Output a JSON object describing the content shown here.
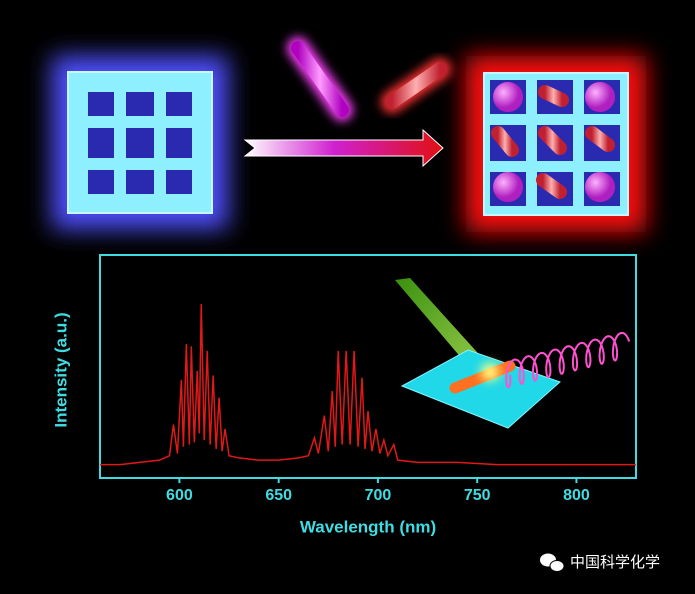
{
  "chart_data": {
    "type": "line",
    "x_label": "Wavelength (nm)",
    "y_label": "Intensity (a.u.)",
    "x": [
      560,
      570,
      580,
      590,
      595,
      597,
      599,
      601,
      602,
      603.5,
      605,
      606,
      607.5,
      609,
      610,
      611,
      612.5,
      614,
      615.5,
      617,
      618.5,
      620,
      621.5,
      623,
      625,
      630,
      640,
      650,
      660,
      665,
      668,
      670,
      673,
      675,
      677,
      678.5,
      680,
      682,
      684,
      686,
      688,
      690,
      692,
      693.5,
      695,
      697,
      699,
      701,
      703,
      705,
      708,
      710,
      720,
      740,
      760,
      780,
      800,
      820,
      830
    ],
    "values": [
      0.06,
      0.06,
      0.07,
      0.08,
      0.1,
      0.24,
      0.11,
      0.44,
      0.14,
      0.6,
      0.15,
      0.59,
      0.16,
      0.48,
      0.2,
      0.78,
      0.17,
      0.57,
      0.15,
      0.46,
      0.13,
      0.36,
      0.12,
      0.22,
      0.1,
      0.09,
      0.08,
      0.08,
      0.09,
      0.1,
      0.18,
      0.11,
      0.28,
      0.12,
      0.39,
      0.14,
      0.57,
      0.15,
      0.57,
      0.15,
      0.57,
      0.14,
      0.45,
      0.13,
      0.3,
      0.12,
      0.22,
      0.11,
      0.17,
      0.1,
      0.15,
      0.08,
      0.07,
      0.07,
      0.06,
      0.06,
      0.06,
      0.06,
      0.06
    ],
    "color": "#e01818",
    "xlim": [
      560,
      830
    ],
    "xticks": [
      600,
      650,
      700,
      750,
      800
    ],
    "ylim": [
      0,
      1
    ]
  },
  "watermark": "中国科学化学"
}
